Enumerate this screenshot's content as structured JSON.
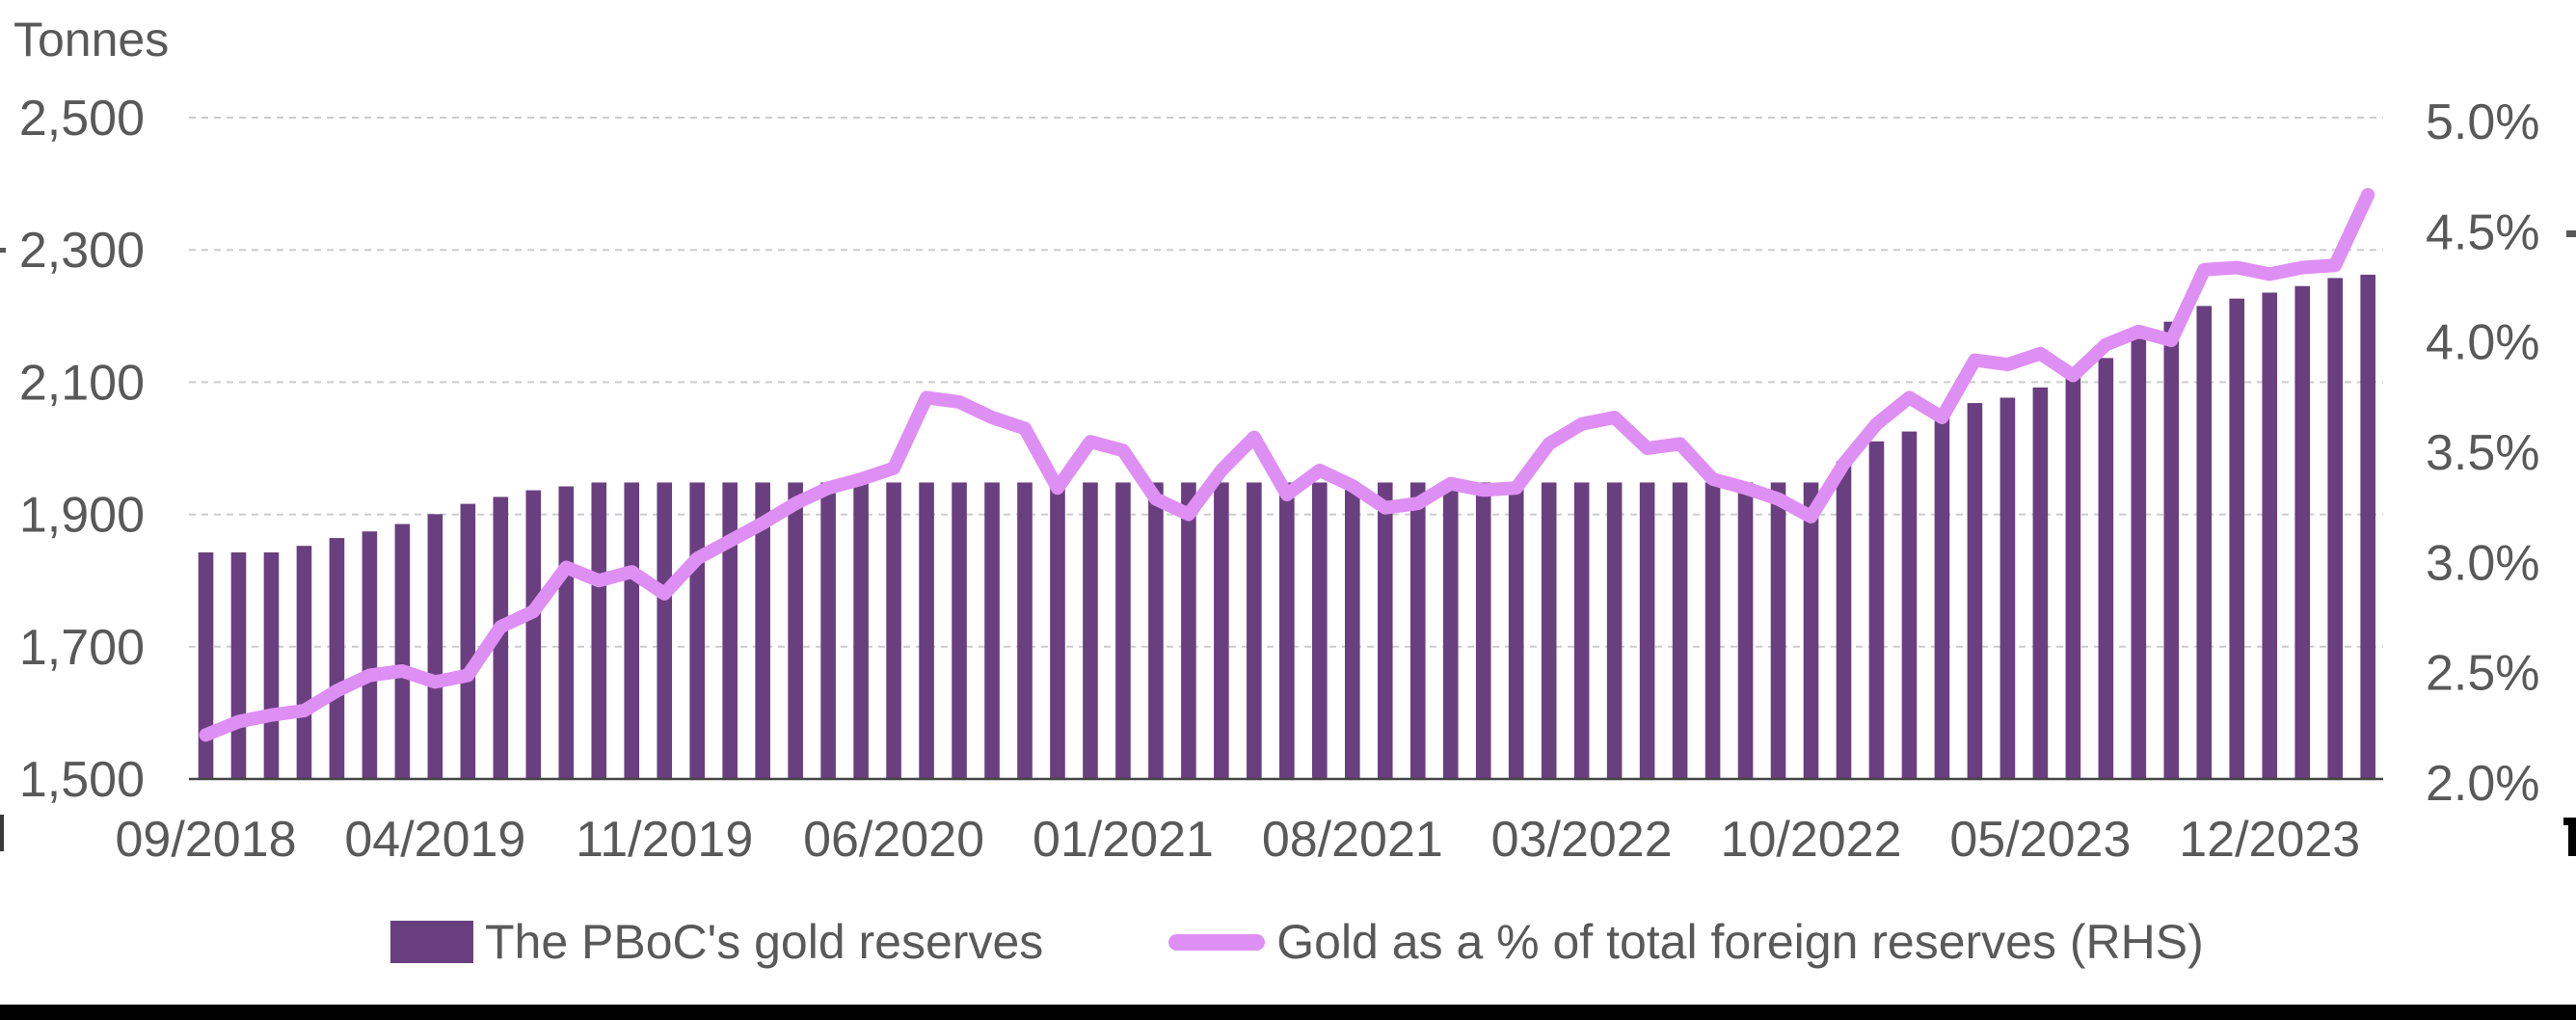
{
  "chart_data": {
    "type": "bar+line",
    "months": [
      "09/2018",
      "10/2018",
      "11/2018",
      "12/2018",
      "01/2019",
      "02/2019",
      "03/2019",
      "04/2019",
      "05/2019",
      "06/2019",
      "07/2019",
      "08/2019",
      "09/2019",
      "10/2019",
      "11/2019",
      "12/2019",
      "01/2020",
      "02/2020",
      "03/2020",
      "04/2020",
      "05/2020",
      "06/2020",
      "07/2020",
      "08/2020",
      "09/2020",
      "10/2020",
      "11/2020",
      "12/2020",
      "01/2021",
      "02/2021",
      "03/2021",
      "04/2021",
      "05/2021",
      "06/2021",
      "07/2021",
      "08/2021",
      "09/2021",
      "10/2021",
      "11/2021",
      "12/2021",
      "01/2022",
      "02/2022",
      "03/2022",
      "04/2022",
      "05/2022",
      "06/2022",
      "07/2022",
      "08/2022",
      "09/2022",
      "10/2022",
      "11/2022",
      "12/2022",
      "01/2023",
      "02/2023",
      "03/2023",
      "04/2023",
      "05/2023",
      "06/2023",
      "07/2023",
      "08/2023",
      "09/2023",
      "10/2023",
      "11/2023",
      "12/2023",
      "01/2024",
      "02/2024",
      "03/2024"
    ],
    "series": [
      {
        "name": "The PBoC's gold reserves",
        "type": "bar",
        "axis": "left",
        "values": [
          1842.6,
          1842.6,
          1842.6,
          1852.5,
          1864.3,
          1874.3,
          1885.5,
          1900.4,
          1916.0,
          1926.5,
          1936.5,
          1942.4,
          1948.3,
          1948.3,
          1948.3,
          1948.3,
          1948.3,
          1948.3,
          1948.3,
          1948.3,
          1948.3,
          1948.3,
          1948.3,
          1948.3,
          1948.3,
          1948.3,
          1948.3,
          1948.3,
          1948.3,
          1948.3,
          1948.3,
          1948.3,
          1948.3,
          1948.3,
          1948.3,
          1948.3,
          1948.3,
          1948.3,
          1948.3,
          1948.3,
          1948.3,
          1948.3,
          1948.3,
          1948.3,
          1948.3,
          1948.3,
          1948.3,
          1948.3,
          1948.3,
          1948.3,
          1980.3,
          2010.5,
          2025.4,
          2050.3,
          2068.4,
          2076.5,
          2092.0,
          2113.5,
          2136.5,
          2165.4,
          2191.5,
          2215.2,
          2226.4,
          2235.4,
          2245.3,
          2257.5,
          2262.5
        ]
      },
      {
        "name": "Gold as a % of total foreign reserves (RHS)",
        "type": "line",
        "axis": "right",
        "values": [
          2.2,
          2.26,
          2.29,
          2.31,
          2.4,
          2.47,
          2.49,
          2.44,
          2.47,
          2.69,
          2.76,
          2.96,
          2.9,
          2.94,
          2.84,
          3.0,
          3.08,
          3.16,
          3.25,
          3.32,
          3.36,
          3.41,
          3.73,
          3.71,
          3.64,
          3.59,
          3.32,
          3.53,
          3.49,
          3.27,
          3.2,
          3.4,
          3.55,
          3.29,
          3.4,
          3.33,
          3.23,
          3.25,
          3.34,
          3.31,
          3.32,
          3.52,
          3.61,
          3.64,
          3.5,
          3.52,
          3.36,
          3.32,
          3.27,
          3.19,
          3.43,
          3.61,
          3.73,
          3.64,
          3.9,
          3.88,
          3.93,
          3.83,
          3.97,
          4.03,
          3.99,
          4.31,
          4.32,
          4.29,
          4.32,
          4.33,
          4.65
        ]
      }
    ],
    "left_axis": {
      "title": "Tonnes",
      "min": 1500,
      "max": 2500,
      "step": 200,
      "tick_labels": [
        "1,500",
        "1,700",
        "1,900",
        "2,100",
        "2,300",
        "2,500"
      ]
    },
    "right_axis": {
      "min": 2.0,
      "max": 5.0,
      "step": 0.5,
      "tick_labels": [
        "2.0%",
        "2.5%",
        "3.0%",
        "3.5%",
        "4.0%",
        "4.5%",
        "5.0%"
      ]
    },
    "x_axis": {
      "tick_labels": [
        "09/2018",
        "04/2019",
        "11/2019",
        "06/2020",
        "01/2021",
        "08/2021",
        "03/2022",
        "10/2022",
        "05/2023",
        "12/2023"
      ],
      "tick_every": 7
    },
    "grid": {
      "horizontal_dashed": true
    },
    "legend_position": "bottom",
    "colors": {
      "bar": "#6a3f7f",
      "line": "#de8ff3",
      "grid": "#cccccc",
      "baseline": "#454545",
      "text": "#595959"
    }
  },
  "legend": {
    "items": [
      {
        "label": "The PBoC's gold reserves"
      },
      {
        "label": "Gold as a % of total foreign reserves (RHS)"
      }
    ]
  }
}
